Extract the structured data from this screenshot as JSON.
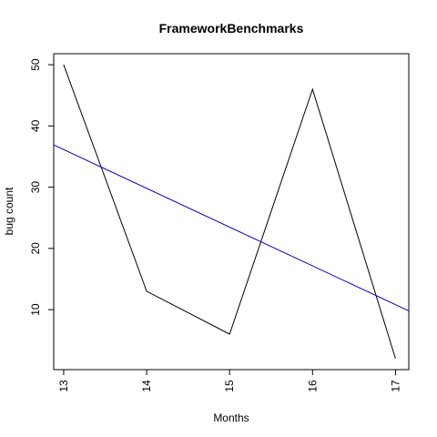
{
  "chart_data": {
    "type": "line",
    "title": "FrameworkBenchmarks",
    "xlabel": "Months",
    "ylabel": "bug count",
    "x": [
      13,
      14,
      15,
      16,
      17
    ],
    "x_tick_labels": [
      "13",
      "14",
      "15",
      "16",
      "17"
    ],
    "y_tick_labels": [
      "10",
      "20",
      "30",
      "40",
      "50"
    ],
    "xlim": [
      12.88,
      17.16
    ],
    "ylim": [
      0.2,
      51.8
    ],
    "grid": false,
    "series": [
      {
        "values": [
          50,
          13,
          6,
          46,
          2
        ],
        "color": "#000000"
      }
    ],
    "trend_line": {
      "color": "#0000cc",
      "points": [
        [
          12.88,
          36.9
        ],
        [
          17.16,
          9.8
        ]
      ]
    }
  }
}
